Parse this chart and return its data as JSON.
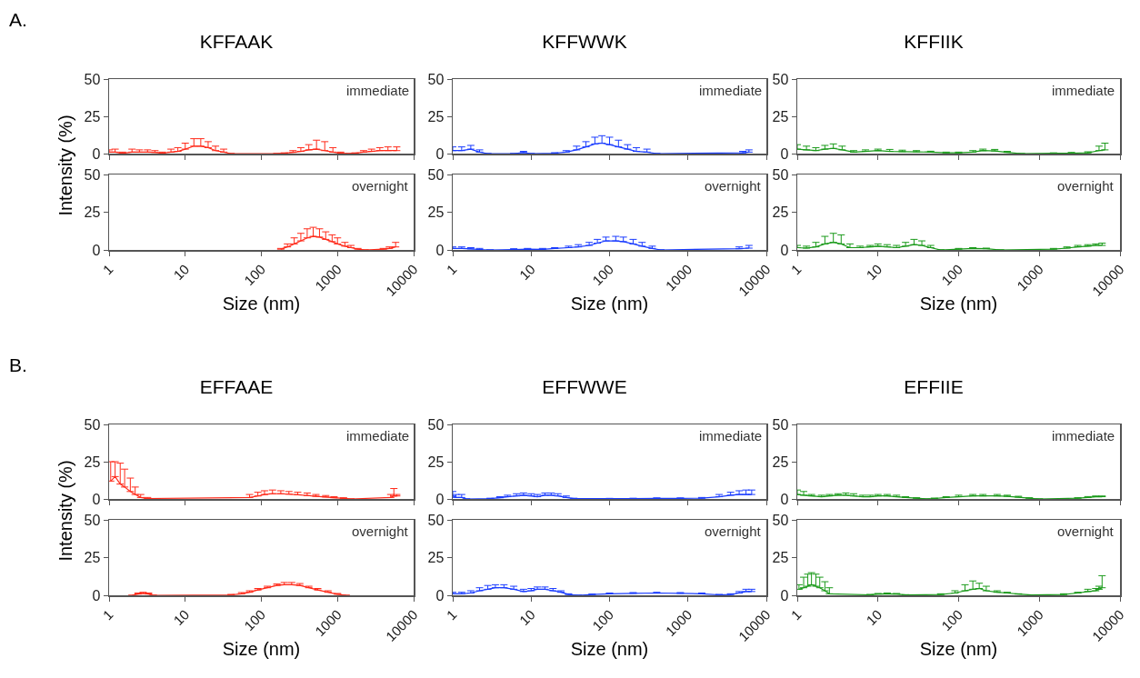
{
  "chart_data": [
    {
      "type": "line",
      "title": "KFFAAK",
      "ylabel": "Intensity (%)",
      "annotations": [
        "immediate",
        "A."
      ],
      "color": "#ff2a1a",
      "xlim": [
        1,
        10000
      ],
      "xticks": [
        1,
        10,
        100,
        1000,
        10000
      ],
      "ylim": [
        0,
        50
      ],
      "yticks": [
        0,
        25,
        50
      ],
      "log": "x",
      "tick_labels": "y",
      "x": [
        1,
        1.2,
        1.5,
        2,
        2.5,
        3.2,
        4,
        5,
        6.5,
        8,
        10,
        13,
        16,
        20,
        25,
        32,
        40,
        160,
        200,
        260,
        330,
        420,
        530,
        680,
        870,
        1100,
        1400,
        1700,
        2200,
        2800,
        3600,
        4600,
        6000
      ],
      "values": [
        1,
        1,
        0.2,
        1,
        1,
        1,
        0.8,
        0.3,
        1,
        1.5,
        3,
        5,
        5,
        4,
        2,
        1,
        0,
        0,
        0.3,
        0.8,
        1.5,
        2.5,
        3,
        2,
        1,
        0.3,
        0,
        0.3,
        1,
        1.5,
        2,
        2,
        2
      ],
      "errors": [
        [
          1,
          2.5
        ],
        [
          1,
          3
        ],
        [
          0.2,
          1
        ],
        [
          1,
          3
        ],
        [
          1,
          2.5
        ],
        [
          1,
          2.5
        ],
        [
          0.8,
          2
        ],
        [
          0.3,
          1
        ],
        [
          1,
          3
        ],
        [
          1.5,
          4
        ],
        [
          3,
          7
        ],
        [
          5,
          10
        ],
        [
          5,
          10
        ],
        [
          4,
          8
        ],
        [
          2,
          5
        ],
        [
          1,
          3
        ],
        null,
        null,
        [
          0.3,
          0.5
        ],
        [
          0.8,
          2
        ],
        [
          1.5,
          4
        ],
        [
          2.5,
          6
        ],
        [
          3,
          9
        ],
        [
          2,
          8
        ],
        [
          1,
          4
        ],
        [
          0.3,
          1
        ],
        null,
        [
          0.3,
          0.5
        ],
        [
          1,
          2
        ],
        [
          1.5,
          3
        ],
        [
          2,
          4
        ],
        [
          2,
          4.5
        ],
        [
          2,
          4.5
        ]
      ]
    },
    {
      "type": "line",
      "annotations": [
        "overnight"
      ],
      "xlabel": "Size (nm)",
      "color": "#ff2a1a",
      "xlim": [
        1,
        10000
      ],
      "xticks": [
        1,
        10,
        100,
        1000,
        10000
      ],
      "ylim": [
        0,
        50
      ],
      "yticks": [
        0,
        25,
        50
      ],
      "log": "x",
      "x": [
        180,
        220,
        270,
        330,
        400,
        480,
        580,
        700,
        850,
        1000,
        1250,
        1500,
        1850,
        2300,
        4000,
        4800,
        5800
      ],
      "values": [
        0.5,
        2,
        4,
        6,
        8,
        9,
        8.5,
        7,
        5.5,
        4,
        2.5,
        1.5,
        0.5,
        0,
        0.5,
        1,
        2
      ],
      "errors": [
        [
          0.5,
          1
        ],
        [
          2,
          4
        ],
        [
          4,
          8
        ],
        [
          6,
          11
        ],
        [
          8,
          14
        ],
        [
          9,
          15
        ],
        [
          8.5,
          14
        ],
        [
          7,
          12
        ],
        [
          5.5,
          10
        ],
        [
          4,
          8
        ],
        [
          2.5,
          5
        ],
        [
          1.5,
          3
        ],
        [
          0.5,
          1
        ],
        null,
        [
          0.5,
          1
        ],
        [
          1,
          2
        ],
        [
          2,
          5
        ]
      ]
    },
    {
      "type": "line",
      "title": "KFFWWK",
      "annotations": [
        "immediate"
      ],
      "color": "#1a3cff",
      "xlim": [
        1,
        10000
      ],
      "xticks": [
        1,
        10,
        100,
        1000,
        10000
      ],
      "ylim": [
        0,
        50
      ],
      "yticks": [
        0,
        25,
        50
      ],
      "log": "x",
      "tick_labels": "y",
      "x": [
        1,
        1.3,
        1.7,
        2.2,
        2.8,
        6,
        8,
        10,
        20,
        28,
        38,
        50,
        65,
        80,
        100,
        130,
        170,
        220,
        300,
        400,
        5000,
        6000
      ],
      "values": [
        2,
        2,
        3,
        1,
        0,
        0,
        0.7,
        0,
        0.3,
        1,
        2.5,
        4.5,
        6.5,
        7,
        6,
        4.5,
        3,
        1.5,
        1,
        0,
        0.5,
        1
      ],
      "errors": [
        [
          2,
          4.5
        ],
        [
          2,
          4.5
        ],
        [
          3,
          5.5
        ],
        [
          1,
          2.5
        ],
        null,
        null,
        [
          0.7,
          1.5
        ],
        null,
        [
          0.3,
          0.6
        ],
        [
          1,
          2
        ],
        [
          2.5,
          5
        ],
        [
          4.5,
          8
        ],
        [
          6.5,
          11
        ],
        [
          7,
          12
        ],
        [
          6,
          11
        ],
        [
          4.5,
          9
        ],
        [
          3,
          6
        ],
        [
          1.5,
          4
        ],
        [
          1,
          3
        ],
        null,
        [
          0.5,
          1.5
        ],
        [
          1,
          2.5
        ]
      ]
    },
    {
      "type": "line",
      "annotations": [
        "overnight"
      ],
      "xlabel": "Size (nm)",
      "color": "#1a3cff",
      "xlim": [
        1,
        10000
      ],
      "xticks": [
        1,
        10,
        100,
        1000,
        10000
      ],
      "ylim": [
        0,
        50
      ],
      "yticks": [
        0,
        25,
        50
      ],
      "log": "x",
      "x": [
        1,
        1.3,
        1.7,
        2.2,
        3,
        6,
        9,
        14,
        20,
        30,
        40,
        55,
        70,
        90,
        120,
        150,
        200,
        260,
        350,
        450,
        4500,
        6000
      ],
      "values": [
        1,
        1,
        0.7,
        0.3,
        0,
        0.3,
        0.5,
        0.4,
        1,
        1.5,
        2,
        3,
        4.5,
        6,
        6,
        5.5,
        4,
        2.5,
        1,
        0,
        0.8,
        1.2
      ],
      "errors": [
        [
          1,
          2
        ],
        [
          1,
          2
        ],
        [
          0.7,
          1.5
        ],
        [
          0.3,
          1
        ],
        null,
        [
          0.3,
          0.8
        ],
        [
          0.5,
          1
        ],
        [
          0.4,
          1
        ],
        [
          1,
          1.5
        ],
        [
          1.5,
          2.5
        ],
        [
          2,
          3.5
        ],
        [
          3,
          5
        ],
        [
          4.5,
          7
        ],
        [
          6,
          8.5
        ],
        [
          6,
          9
        ],
        [
          5.5,
          8.5
        ],
        [
          4,
          7
        ],
        [
          2.5,
          5
        ],
        [
          1,
          2.5
        ],
        null,
        [
          0.8,
          2
        ],
        [
          1.2,
          3
        ]
      ]
    },
    {
      "type": "line",
      "title": "KFFIIK",
      "annotations": [
        "immediate"
      ],
      "color": "#1a9a1a",
      "xlim": [
        1,
        10000
      ],
      "xticks": [
        1,
        10,
        100,
        1000,
        10000
      ],
      "ylim": [
        0,
        50
      ],
      "yticks": [
        0,
        25,
        50
      ],
      "log": "x",
      "tick_labels": "y",
      "x": [
        1,
        1.3,
        1.7,
        2.2,
        2.8,
        3.6,
        5,
        7,
        10,
        14,
        20,
        30,
        45,
        70,
        100,
        150,
        200,
        280,
        400,
        600,
        1500,
        2500,
        4000,
        5500,
        6500
      ],
      "values": [
        3,
        2.5,
        2,
        3,
        3.5,
        2.5,
        1,
        1.5,
        2,
        1.5,
        1.3,
        1.2,
        1,
        0.5,
        0.5,
        1,
        2,
        1.8,
        0.8,
        0,
        0.2,
        0.3,
        0.5,
        2,
        2.5
      ],
      "errors": [
        [
          3,
          6
        ],
        [
          2.5,
          5
        ],
        [
          2,
          4
        ],
        [
          3,
          5.5
        ],
        [
          3.5,
          6.5
        ],
        [
          2.5,
          5
        ],
        [
          1,
          2
        ],
        [
          1.5,
          2.5
        ],
        [
          2,
          3
        ],
        [
          1.5,
          2.8
        ],
        [
          1.3,
          2.3
        ],
        [
          1.2,
          2
        ],
        [
          1,
          1.6
        ],
        [
          0.5,
          1
        ],
        [
          0.5,
          1
        ],
        [
          1,
          2
        ],
        [
          2,
          3
        ],
        [
          1.8,
          2.8
        ],
        [
          0.8,
          1.5
        ],
        null,
        [
          0.2,
          0.5
        ],
        [
          0.3,
          0.8
        ],
        [
          0.5,
          1.2
        ],
        [
          2,
          5
        ],
        [
          2.5,
          7
        ]
      ]
    },
    {
      "type": "line",
      "annotations": [
        "overnight"
      ],
      "xlabel": "Size (nm)",
      "color": "#1a9a1a",
      "xlim": [
        1,
        10000
      ],
      "xticks": [
        1,
        10,
        100,
        1000,
        10000
      ],
      "ylim": [
        0,
        50
      ],
      "yticks": [
        0,
        25,
        50
      ],
      "log": "x",
      "x": [
        1,
        1.3,
        1.7,
        2.2,
        2.8,
        3.5,
        4.5,
        6,
        8,
        10,
        13,
        17,
        22,
        28,
        35,
        45,
        60,
        100,
        150,
        220,
        330,
        1500,
        2200,
        3000,
        4000,
        5000,
        6000
      ],
      "values": [
        1.5,
        1.2,
        2,
        4,
        5,
        4,
        1.5,
        1.5,
        2,
        2.5,
        2,
        1.5,
        2.5,
        3.5,
        3,
        1.5,
        0,
        0.5,
        1,
        0.8,
        0,
        0.5,
        1.2,
        2,
        2.5,
        3,
        3
      ],
      "errors": [
        [
          1.5,
          3
        ],
        [
          1.2,
          2.5
        ],
        [
          2,
          5
        ],
        [
          4,
          9
        ],
        [
          5,
          11
        ],
        [
          4,
          10
        ],
        [
          1.5,
          4
        ],
        [
          1.5,
          2.5
        ],
        [
          2,
          3
        ],
        [
          2.5,
          4
        ],
        [
          2,
          3.5
        ],
        [
          1.5,
          3
        ],
        [
          2.5,
          5
        ],
        [
          3.5,
          7
        ],
        [
          3,
          6
        ],
        [
          1.5,
          3
        ],
        null,
        [
          0.5,
          1
        ],
        [
          1,
          1.5
        ],
        [
          0.8,
          1.2
        ],
        null,
        [
          0.5,
          1
        ],
        [
          1.2,
          2
        ],
        [
          2,
          3
        ],
        [
          2.5,
          3.5
        ],
        [
          3,
          4
        ],
        [
          3,
          4.5
        ]
      ]
    },
    {
      "type": "line",
      "title": "EFFAAE",
      "ylabel": "Intensity (%)",
      "annotations": [
        "immediate",
        "B."
      ],
      "color": "#ff2a1a",
      "xlim": [
        1,
        10000
      ],
      "xticks": [
        1,
        10,
        100,
        1000,
        10000
      ],
      "ylim": [
        0,
        50
      ],
      "yticks": [
        0,
        25,
        50
      ],
      "log": "x",
      "tick_labels": "y",
      "x": [
        1.05,
        1.2,
        1.4,
        1.6,
        1.9,
        2.2,
        2.6,
        3.2,
        70,
        90,
        110,
        140,
        180,
        230,
        300,
        400,
        520,
        700,
        900,
        1200,
        1500,
        5000,
        5500,
        6000
      ],
      "values": [
        12,
        15,
        10,
        8,
        5,
        3,
        1,
        0.3,
        1,
        2,
        3,
        3.5,
        3.5,
        3.2,
        2.8,
        2.3,
        1.8,
        1.3,
        0.8,
        0.4,
        0,
        1,
        2,
        2
      ],
      "errors": [
        [
          12,
          25
        ],
        [
          15,
          25
        ],
        [
          10,
          24
        ],
        [
          8,
          20
        ],
        [
          5,
          14
        ],
        [
          3,
          8
        ],
        [
          1,
          3
        ],
        [
          0.3,
          1
        ],
        [
          1,
          3
        ],
        [
          2,
          4.5
        ],
        [
          3,
          5.5
        ],
        [
          3.5,
          6
        ],
        [
          3.5,
          5.5
        ],
        [
          3.2,
          5
        ],
        [
          2.8,
          4.5
        ],
        [
          2.3,
          4
        ],
        [
          1.8,
          3
        ],
        [
          1.3,
          2.3
        ],
        [
          0.8,
          1.5
        ],
        [
          0.4,
          0.8
        ],
        null,
        [
          1,
          3
        ],
        [
          2,
          7
        ],
        [
          2,
          3
        ]
      ]
    },
    {
      "type": "line",
      "annotations": [
        "overnight"
      ],
      "xlabel": "Size (nm)",
      "color": "#ff2a1a",
      "xlim": [
        1,
        10000
      ],
      "xticks": [
        1,
        10,
        100,
        1000,
        10000
      ],
      "ylim": [
        0,
        50
      ],
      "yticks": [
        0,
        25,
        50
      ],
      "log": "x",
      "x": [
        2,
        2.4,
        2.8,
        3.3,
        3.8,
        40,
        55,
        70,
        90,
        120,
        160,
        200,
        250,
        320,
        420,
        550,
        750,
        1000,
        1300
      ],
      "values": [
        0,
        0.8,
        1.2,
        0.8,
        0,
        0.3,
        1,
        2,
        3.5,
        5,
        6.5,
        7,
        7,
        6.5,
        5,
        3.5,
        2,
        0.7,
        0
      ],
      "errors": [
        null,
        [
          0.8,
          1.5
        ],
        [
          1.2,
          2
        ],
        [
          0.8,
          1.5
        ],
        null,
        [
          0.3,
          0.6
        ],
        [
          1,
          1.8
        ],
        [
          2,
          3
        ],
        [
          3.5,
          4.5
        ],
        [
          5,
          6
        ],
        [
          6.5,
          7.5
        ],
        [
          7,
          8.5
        ],
        [
          7,
          8.5
        ],
        [
          6.5,
          7.8
        ],
        [
          5,
          6
        ],
        [
          3.5,
          4.5
        ],
        [
          2,
          3
        ],
        [
          0.7,
          1.2
        ],
        null
      ]
    },
    {
      "type": "line",
      "title": "EFFWWE",
      "annotations": [
        "immediate"
      ],
      "color": "#1a3cff",
      "xlim": [
        1,
        10000
      ],
      "xticks": [
        1,
        10,
        100,
        1000,
        10000
      ],
      "ylim": [
        0,
        50
      ],
      "yticks": [
        0,
        25,
        50
      ],
      "log": "x",
      "tick_labels": "y",
      "x": [
        1,
        1.1,
        1.3,
        1.5,
        3,
        4,
        5,
        6.5,
        8,
        10,
        12,
        15,
        18,
        22,
        28,
        35,
        100,
        200,
        400,
        800,
        1500,
        2500,
        3500,
        4500,
        5500,
        6500
      ],
      "values": [
        2,
        1,
        1,
        0,
        0.2,
        0.8,
        1.5,
        2,
        2.5,
        2,
        1.5,
        2.5,
        2.5,
        2,
        1,
        0.2,
        0.2,
        0.3,
        0.4,
        0.4,
        0.5,
        1.5,
        2.5,
        3,
        3,
        3
      ],
      "errors": [
        [
          2,
          5
        ],
        [
          1,
          3
        ],
        [
          1,
          3
        ],
        null,
        [
          0.2,
          0.5
        ],
        [
          0.8,
          1.5
        ],
        [
          1.5,
          2.5
        ],
        [
          2,
          3.5
        ],
        [
          2.5,
          4
        ],
        [
          2,
          3.5
        ],
        [
          1.5,
          3
        ],
        [
          2.5,
          4
        ],
        [
          2.5,
          4
        ],
        [
          2,
          3.5
        ],
        [
          1,
          2
        ],
        [
          0.2,
          0.5
        ],
        [
          0.2,
          0.4
        ],
        [
          0.3,
          0.5
        ],
        [
          0.4,
          0.7
        ],
        [
          0.4,
          0.7
        ],
        [
          0.5,
          1
        ],
        [
          1.5,
          3
        ],
        [
          2.5,
          4.5
        ],
        [
          3,
          5.5
        ],
        [
          3,
          6
        ],
        [
          3,
          6
        ]
      ]
    },
    {
      "type": "line",
      "annotations": [
        "overnight"
      ],
      "xlabel": "Size (nm)",
      "color": "#1a3cff",
      "xlim": [
        1,
        10000
      ],
      "xticks": [
        1,
        10,
        100,
        1000,
        10000
      ],
      "ylim": [
        0,
        50
      ],
      "yticks": [
        0,
        25,
        50
      ],
      "log": "x",
      "x": [
        1,
        1.3,
        1.7,
        2.2,
        2.8,
        3.5,
        4.5,
        6,
        8,
        10,
        12,
        15,
        19,
        24,
        30,
        40,
        60,
        100,
        200,
        400,
        800,
        1500,
        2500,
        3500,
        4500,
        5500,
        6500
      ],
      "values": [
        1,
        1,
        1.5,
        3,
        4,
        5,
        5,
        4,
        2.5,
        3,
        4,
        4,
        3,
        2,
        0.5,
        0,
        0.5,
        1,
        1.3,
        1.5,
        1.3,
        1,
        0.3,
        0.5,
        1.5,
        2.5,
        2.5
      ],
      "errors": [
        [
          1,
          2
        ],
        [
          1,
          2
        ],
        [
          1.5,
          3
        ],
        [
          3,
          5
        ],
        [
          4,
          6.5
        ],
        [
          5,
          7
        ],
        [
          5,
          7
        ],
        [
          4,
          6
        ],
        [
          2.5,
          4
        ],
        [
          3,
          4.5
        ],
        [
          4,
          5.5
        ],
        [
          4,
          5.5
        ],
        [
          3,
          4.5
        ],
        [
          2,
          3
        ],
        [
          0.5,
          1
        ],
        null,
        [
          0.5,
          0.8
        ],
        [
          1,
          1.5
        ],
        [
          1.3,
          1.8
        ],
        [
          1.5,
          2
        ],
        [
          1.3,
          1.8
        ],
        [
          1,
          1.5
        ],
        [
          0.3,
          0.6
        ],
        [
          0.5,
          1
        ],
        [
          1.5,
          2.5
        ],
        [
          2.5,
          4
        ],
        [
          2.5,
          4
        ]
      ]
    },
    {
      "type": "line",
      "title": "EFFIIE",
      "annotations": [
        "immediate"
      ],
      "color": "#1a9a1a",
      "xlim": [
        1,
        10000
      ],
      "xticks": [
        1,
        10,
        100,
        1000,
        10000
      ],
      "ylim": [
        0,
        50
      ],
      "yticks": [
        0,
        25,
        50
      ],
      "log": "x",
      "tick_labels": "y",
      "x": [
        1,
        1.2,
        1.5,
        2,
        2.5,
        3.2,
        4,
        5,
        6.5,
        8,
        10,
        13,
        17,
        22,
        30,
        40,
        50,
        70,
        100,
        150,
        200,
        300,
        400,
        550,
        750,
        1000,
        3000,
        4000,
        5000,
        6000
      ],
      "values": [
        3,
        2.5,
        2,
        1.5,
        2,
        2.5,
        2.5,
        2,
        1.5,
        1.5,
        2,
        2,
        1.5,
        1,
        0.5,
        0,
        0.3,
        1,
        1.5,
        2,
        2,
        2,
        1.8,
        1.2,
        0.5,
        0,
        0.5,
        1,
        1.5,
        1.5
      ],
      "errors": [
        [
          3,
          6
        ],
        [
          2.5,
          5
        ],
        [
          2,
          3
        ],
        [
          1.5,
          2.5
        ],
        [
          2,
          3
        ],
        [
          2.5,
          3.5
        ],
        [
          2.5,
          4
        ],
        [
          2,
          3.5
        ],
        [
          1.5,
          2.5
        ],
        [
          1.5,
          2.5
        ],
        [
          2,
          3
        ],
        [
          2,
          3
        ],
        [
          1.5,
          2.5
        ],
        [
          1,
          1.5
        ],
        [
          0.5,
          0.8
        ],
        null,
        [
          0.3,
          0.6
        ],
        [
          1,
          1.5
        ],
        [
          1.5,
          2.5
        ],
        [
          2,
          3
        ],
        [
          2,
          3
        ],
        [
          2,
          3
        ],
        [
          1.8,
          2.5
        ],
        [
          1.2,
          1.8
        ],
        [
          0.5,
          0.8
        ],
        null,
        [
          0.5,
          0.8
        ],
        [
          1,
          1.6
        ],
        [
          1.5,
          2
        ],
        [
          1.5,
          2
        ]
      ]
    },
    {
      "type": "line",
      "annotations": [
        "overnight"
      ],
      "xlabel": "Size (nm)",
      "color": "#1a9a1a",
      "xlim": [
        1,
        10000
      ],
      "xticks": [
        1,
        10,
        100,
        1000,
        10000
      ],
      "ylim": [
        0,
        50
      ],
      "yticks": [
        0,
        25,
        50
      ],
      "log": "x",
      "x": [
        1.05,
        1.2,
        1.35,
        1.5,
        1.7,
        1.9,
        2.2,
        2.5,
        8,
        10,
        13,
        17,
        22,
        60,
        90,
        120,
        150,
        180,
        220,
        300,
        400,
        550,
        800,
        2000,
        3000,
        4000,
        5000,
        5500,
        6000
      ],
      "values": [
        4,
        5,
        6,
        7,
        6,
        5,
        3,
        1,
        0.3,
        0.8,
        1,
        0.8,
        0.2,
        0.5,
        1.5,
        3,
        4,
        4.5,
        3,
        2,
        1.5,
        0.8,
        0.2,
        0.5,
        1.5,
        2.5,
        3,
        4,
        5
      ],
      "errors": [
        [
          4,
          7
        ],
        [
          5,
          12
        ],
        [
          6,
          14
        ],
        [
          7,
          15
        ],
        [
          6,
          14
        ],
        [
          5,
          12
        ],
        [
          3,
          9
        ],
        [
          1,
          5
        ],
        [
          0.3,
          0.6
        ],
        [
          0.8,
          1.2
        ],
        [
          1,
          1.5
        ],
        [
          0.8,
          1.2
        ],
        [
          0.2,
          0.4
        ],
        [
          0.5,
          1
        ],
        [
          1.5,
          3
        ],
        [
          3,
          7
        ],
        [
          4,
          9.5
        ],
        [
          4.5,
          8
        ],
        [
          3,
          6
        ],
        [
          2,
          3
        ],
        [
          1.5,
          2
        ],
        [
          0.8,
          1
        ],
        [
          0.2,
          0.3
        ],
        [
          0.5,
          1
        ],
        [
          1.5,
          2
        ],
        [
          2.5,
          4
        ],
        [
          3,
          4.5
        ],
        [
          4,
          6
        ],
        [
          5,
          13
        ]
      ]
    }
  ]
}
